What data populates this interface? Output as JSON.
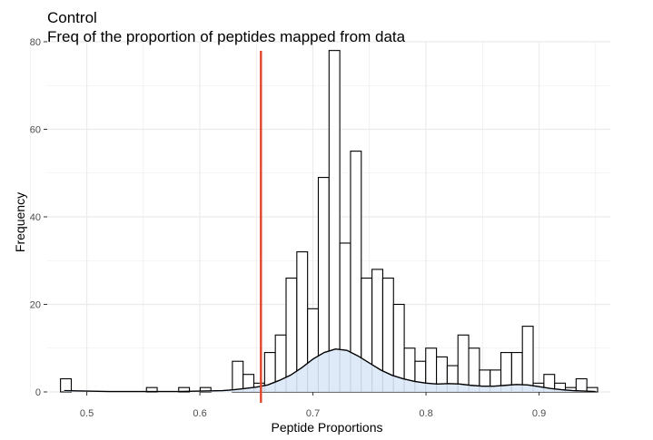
{
  "chart_data": {
    "type": "histogram",
    "title": "Control",
    "subtitle": "Freq of the proportion of peptides mapped from data",
    "xlabel": "Peptide Proportions",
    "ylabel": "Frequency",
    "xlim": [
      0.465,
      0.963
    ],
    "ylim": [
      0,
      80
    ],
    "x_ticks": [
      0.5,
      0.6,
      0.7,
      0.8,
      0.9
    ],
    "x_tick_labels": [
      "0.5",
      "0.6",
      "0.7",
      "0.8",
      "0.9"
    ],
    "y_ticks": [
      0,
      20,
      40,
      60,
      80
    ],
    "y_tick_labels": [
      "0",
      "20",
      "40",
      "60",
      "80"
    ],
    "bin_width": 0.0095,
    "bins": [
      {
        "x": 0.4815,
        "count": 3
      },
      {
        "x": 0.5575,
        "count": 1
      },
      {
        "x": 0.586,
        "count": 1
      },
      {
        "x": 0.605,
        "count": 1
      },
      {
        "x": 0.6335,
        "count": 7
      },
      {
        "x": 0.643,
        "count": 4
      },
      {
        "x": 0.6525,
        "count": 2
      },
      {
        "x": 0.662,
        "count": 9
      },
      {
        "x": 0.6715,
        "count": 13
      },
      {
        "x": 0.681,
        "count": 26
      },
      {
        "x": 0.6905,
        "count": 32
      },
      {
        "x": 0.7,
        "count": 19
      },
      {
        "x": 0.7095,
        "count": 49
      },
      {
        "x": 0.719,
        "count": 78
      },
      {
        "x": 0.7285,
        "count": 34
      },
      {
        "x": 0.738,
        "count": 55
      },
      {
        "x": 0.7475,
        "count": 26
      },
      {
        "x": 0.757,
        "count": 28
      },
      {
        "x": 0.7665,
        "count": 26
      },
      {
        "x": 0.776,
        "count": 20
      },
      {
        "x": 0.7855,
        "count": 10
      },
      {
        "x": 0.795,
        "count": 7
      },
      {
        "x": 0.8045,
        "count": 10
      },
      {
        "x": 0.814,
        "count": 8
      },
      {
        "x": 0.8235,
        "count": 6
      },
      {
        "x": 0.833,
        "count": 13
      },
      {
        "x": 0.8425,
        "count": 10
      },
      {
        "x": 0.852,
        "count": 5
      },
      {
        "x": 0.8615,
        "count": 5
      },
      {
        "x": 0.871,
        "count": 9
      },
      {
        "x": 0.8805,
        "count": 9
      },
      {
        "x": 0.89,
        "count": 15
      },
      {
        "x": 0.8995,
        "count": 2
      },
      {
        "x": 0.909,
        "count": 4
      },
      {
        "x": 0.9185,
        "count": 2
      },
      {
        "x": 0.928,
        "count": 1
      },
      {
        "x": 0.9375,
        "count": 3
      },
      {
        "x": 0.947,
        "count": 1
      }
    ],
    "density_curve": {
      "x": [
        0.48,
        0.5,
        0.52,
        0.54,
        0.56,
        0.58,
        0.6,
        0.62,
        0.63,
        0.64,
        0.65,
        0.66,
        0.67,
        0.68,
        0.69,
        0.7,
        0.71,
        0.72,
        0.73,
        0.74,
        0.75,
        0.76,
        0.77,
        0.78,
        0.79,
        0.8,
        0.81,
        0.82,
        0.83,
        0.84,
        0.85,
        0.86,
        0.87,
        0.88,
        0.89,
        0.9,
        0.91,
        0.92,
        0.93,
        0.94,
        0.95
      ],
      "y": [
        0.3,
        0.2,
        0.1,
        0.1,
        0.1,
        0.1,
        0.2,
        0.3,
        0.5,
        0.8,
        1.1,
        1.6,
        2.6,
        3.8,
        5.5,
        7.5,
        9.0,
        9.8,
        9.5,
        8.2,
        6.6,
        5.0,
        3.8,
        3.0,
        2.4,
        2.0,
        1.8,
        1.9,
        1.8,
        1.5,
        1.3,
        1.3,
        1.5,
        1.7,
        1.6,
        1.2,
        0.8,
        0.5,
        0.3,
        0.2,
        0.1
      ],
      "fill": "#dce8f8",
      "stroke": "#000000"
    },
    "reference_line": {
      "x": 0.654,
      "color": "#e0452a"
    },
    "bar_fill": "#ffffff",
    "bar_stroke": "#000000",
    "grid": true,
    "grid_color": "#ebebeb"
  }
}
